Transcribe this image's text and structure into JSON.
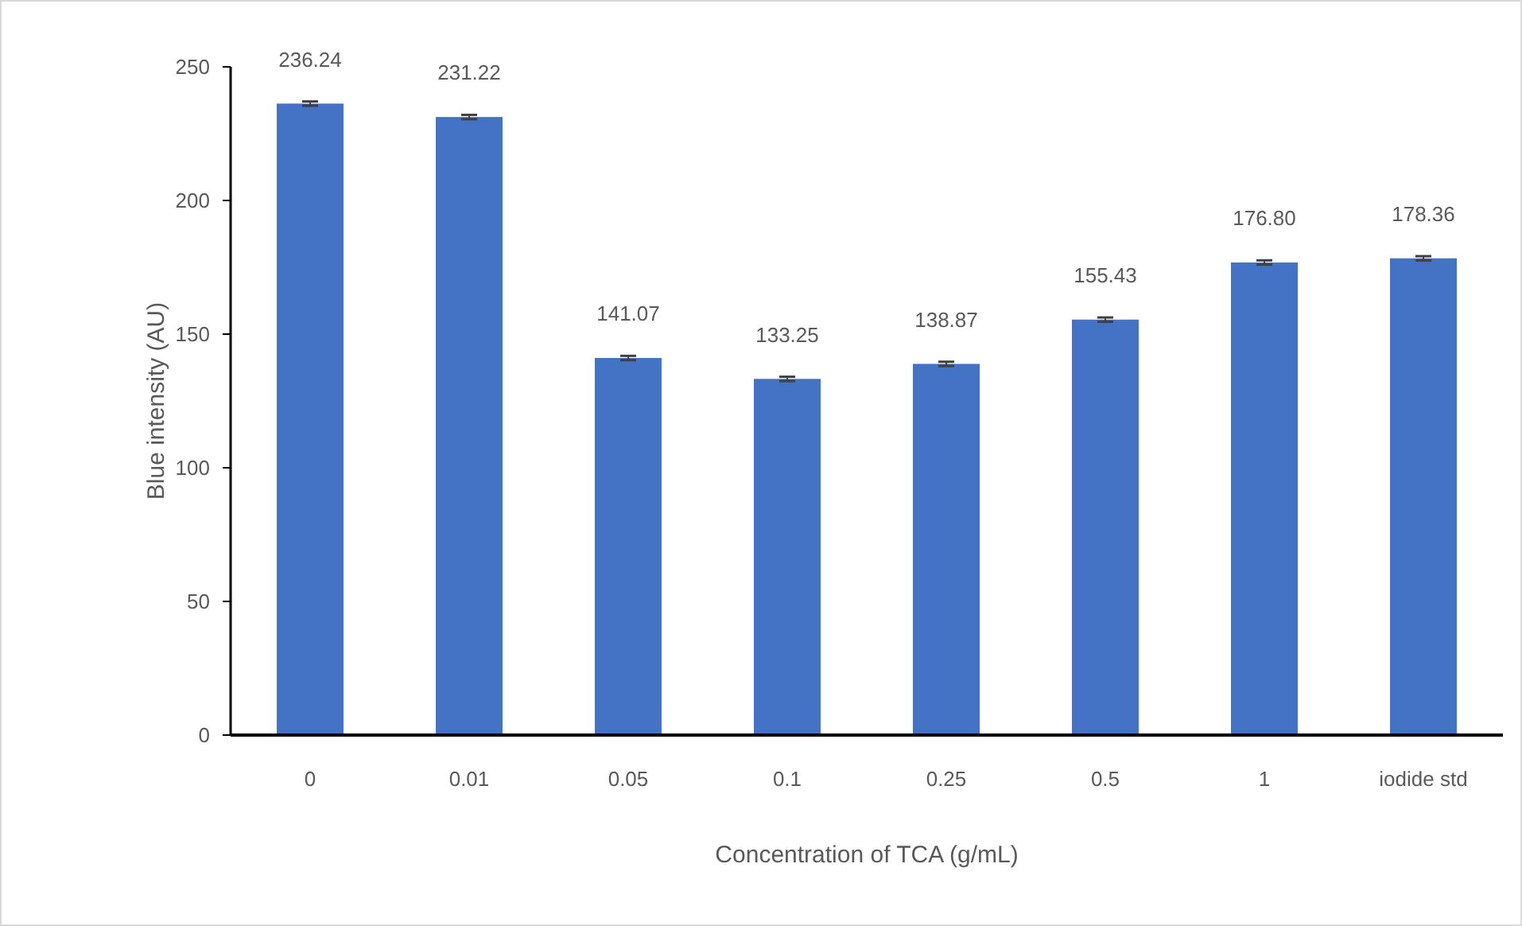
{
  "chart_data": {
    "type": "bar",
    "xlabel": "Concentration of TCA (g/mL)",
    "ylabel": "Blue intensity (AU)",
    "categories": [
      "0",
      "0.01",
      "0.05",
      "0.1",
      "0.25",
      "0.5",
      "1",
      "iodide std"
    ],
    "values": [
      236.24,
      231.22,
      141.07,
      133.25,
      138.87,
      155.43,
      176.8,
      178.36
    ],
    "value_labels": [
      "236.24",
      "231.22",
      "141.07",
      "133.25",
      "138.87",
      "155.43",
      "176.80",
      "178.36"
    ],
    "errors": [
      0.8,
      0.8,
      0.8,
      0.8,
      0.8,
      0.8,
      0.8,
      0.8
    ],
    "color": "#4472c4",
    "ylim": [
      0,
      250
    ],
    "yticks": [
      0,
      50,
      100,
      150,
      200,
      250
    ],
    "grid": false
  }
}
